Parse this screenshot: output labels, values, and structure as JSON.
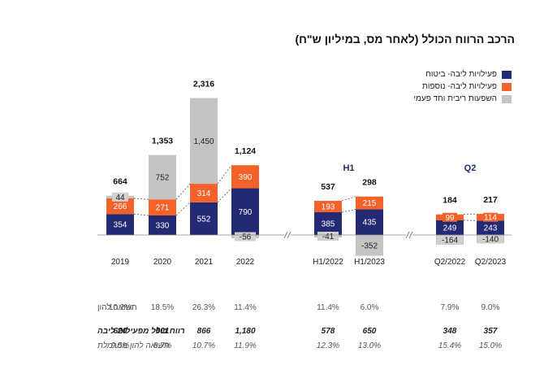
{
  "title": "הרכב הרווח הכולל (לאחר מס, במיליון ש\"ח)",
  "colors": {
    "insurance": "#232a73",
    "additional": "#f4622a",
    "oneoff": "#c4c4c4"
  },
  "legend": [
    {
      "label": "פעילויות ליבה- ביטוח",
      "color": "#232a73"
    },
    {
      "label": "פעילויות ליבה- נוספות",
      "color": "#f4622a"
    },
    {
      "label": "השפעות ריבית וחד פעמי",
      "color": "#c4c4c4"
    }
  ],
  "chart_data": {
    "type": "bar",
    "stacked": true,
    "groups": [
      {
        "label": "H1",
        "categories": [
          "H1/2022",
          "H1/2023"
        ]
      },
      {
        "label": "Q2",
        "categories": [
          "Q2/2022",
          "Q2/2023"
        ]
      }
    ],
    "categories": [
      "2019",
      "2020",
      "2021",
      "2022",
      "H1/2022",
      "H1/2023",
      "Q2/2022",
      "Q2/2023"
    ],
    "series": [
      {
        "name": "פעילויות ליבה- ביטוח",
        "values": [
          354,
          330,
          552,
          790,
          385,
          435,
          249,
          243
        ]
      },
      {
        "name": "פעילויות ליבה- נוספות",
        "values": [
          266,
          271,
          314,
          390,
          193,
          215,
          99,
          114
        ]
      },
      {
        "name": "השפעות ריבית וחד פעמי",
        "values": [
          44,
          752,
          1450,
          -56,
          -41,
          -352,
          -164,
          -140
        ]
      }
    ],
    "totals": [
      "664",
      "1,353",
      "2,316",
      "1,124",
      "537",
      "298",
      "184",
      "217"
    ],
    "value_labels": [
      [
        "354",
        "330",
        "552",
        "790",
        "385",
        "435",
        "249",
        "243"
      ],
      [
        "266",
        "271",
        "314",
        "390",
        "193",
        "215",
        "99",
        "114"
      ],
      [
        "44",
        "752",
        "1,450",
        "-56",
        "-41",
        "-352",
        "-164",
        "-140"
      ]
    ],
    "legend_position": "top-right",
    "grid": false
  },
  "table": {
    "rows": [
      {
        "label": "תשואה להון",
        "values": [
          "10.2%",
          "18.5%",
          "26.3%",
          "11.4%",
          "11.4%",
          "6.0%",
          "7.9%",
          "9.0%"
        ]
      },
      {
        "label": "רווח כולל מפעילות ליבה",
        "values": [
          "620",
          "601",
          "866",
          "1,180",
          "578",
          "650",
          "348",
          "357"
        ]
      },
      {
        "label": "תשואה להון מנורמלת",
        "values": [
          "9.5%",
          "8.7%",
          "10.7%",
          "11.9%",
          "12.3%",
          "13.0%",
          "15.4%",
          "15.0%"
        ]
      }
    ]
  }
}
